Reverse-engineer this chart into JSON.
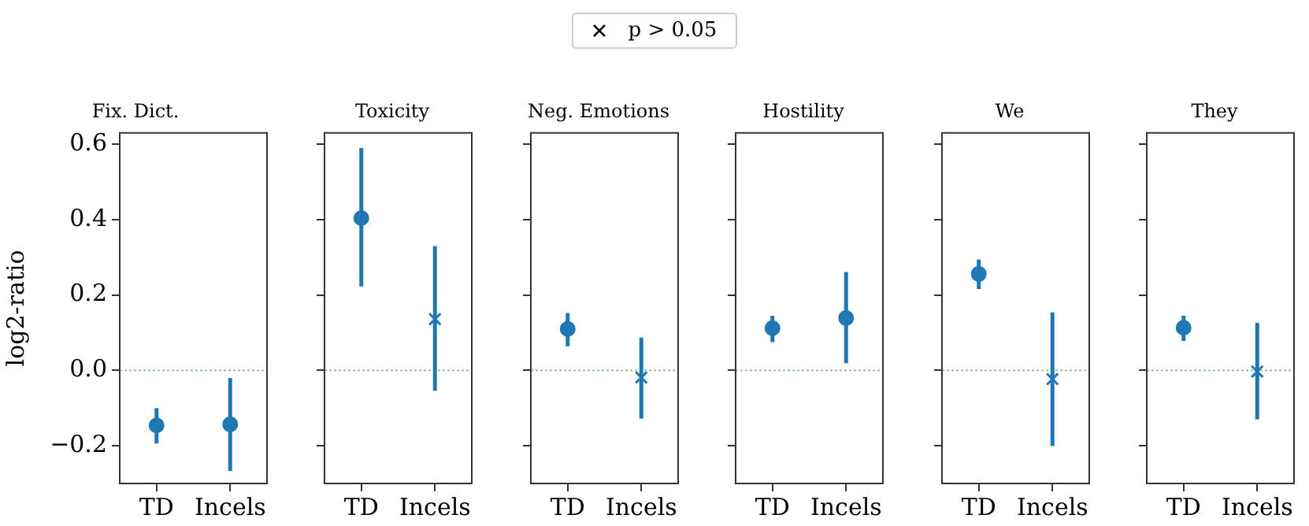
{
  "chart_data": [
    {
      "type": "scatter",
      "title": "Fix. Dict.",
      "ylabel": "log2-ratio",
      "categories": [
        "TD",
        "Incels"
      ],
      "ylim": [
        -0.3,
        0.63
      ],
      "yticks": [
        {
          "value": -0.2,
          "label": "−0.2"
        },
        {
          "value": 0,
          "label": "0.0"
        },
        0.2,
        0.4,
        0.6
      ],
      "grid": false,
      "ref_lines": [
        {
          "axis": "y",
          "value": 0,
          "color": "#8fbc8f",
          "line_style": "dotted"
        }
      ],
      "series": [
        {
          "color": "#1f77b4",
          "marker": "circle",
          "values": [
            -0.146,
            -0.143
          ],
          "errors": [
            [
              -0.194,
              -0.1
            ],
            [
              -0.267,
              -0.02
            ]
          ]
        },
        {
          "color": "#1f77b4",
          "marker": "cross",
          "values": [
            null,
            null
          ],
          "errors": [
            null,
            null
          ]
        }
      ]
    },
    {
      "type": "scatter",
      "title": "Toxicity",
      "categories": [
        "TD",
        "Incels"
      ],
      "ylim": [
        -0.3,
        0.63
      ],
      "yticks": [
        {
          "value": -0.2,
          "label": null
        },
        {
          "value": 0,
          "label": null
        },
        {
          "value": 0.2,
          "label": null
        },
        {
          "value": 0.4,
          "label": null
        },
        {
          "value": 0.6,
          "label": null
        }
      ],
      "tick_labels": "x",
      "grid": false,
      "legend": "top",
      "ref_lines": [
        {
          "axis": "y",
          "value": 0,
          "color": "#8fbc8f",
          "line_style": "dotted"
        }
      ],
      "series": [
        {
          "color": "#1f77b4",
          "marker": "circle",
          "values": [
            0.404,
            null
          ],
          "errors": [
            [
              0.223,
              0.59
            ],
            null
          ]
        },
        {
          "name": "p > 0.05",
          "color": "#1f77b4",
          "marker": "cross",
          "values": [
            null,
            0.136
          ],
          "errors": [
            null,
            [
              -0.054,
              0.33
            ]
          ]
        }
      ]
    },
    {
      "type": "scatter",
      "title": "Neg. Emotions",
      "categories": [
        "TD",
        "Incels"
      ],
      "ylim": [
        -0.3,
        0.63
      ],
      "yticks": [
        {
          "value": -0.2,
          "label": null
        },
        {
          "value": 0,
          "label": null
        },
        {
          "value": 0.2,
          "label": null
        },
        {
          "value": 0.4,
          "label": null
        },
        {
          "value": 0.6,
          "label": null
        }
      ],
      "tick_labels": "x",
      "grid": false,
      "ref_lines": [
        {
          "axis": "y",
          "value": 0,
          "color": "#8fbc8f",
          "line_style": "dotted"
        }
      ],
      "series": [
        {
          "color": "#1f77b4",
          "marker": "circle",
          "values": [
            0.11,
            null
          ],
          "errors": [
            [
              0.064,
              0.152
            ],
            null
          ]
        },
        {
          "color": "#1f77b4",
          "marker": "cross",
          "values": [
            null,
            -0.019
          ],
          "errors": [
            null,
            [
              -0.128,
              0.087
            ]
          ]
        }
      ]
    },
    {
      "type": "scatter",
      "title": "Hostility",
      "categories": [
        "TD",
        "Incels"
      ],
      "ylim": [
        -0.3,
        0.63
      ],
      "yticks": [
        {
          "value": -0.2,
          "label": null
        },
        {
          "value": 0,
          "label": null
        },
        {
          "value": 0.2,
          "label": null
        },
        {
          "value": 0.4,
          "label": null
        },
        {
          "value": 0.6,
          "label": null
        }
      ],
      "tick_labels": "x",
      "grid": false,
      "ref_lines": [
        {
          "axis": "y",
          "value": 0,
          "color": "#8fbc8f",
          "line_style": "dotted"
        }
      ],
      "series": [
        {
          "color": "#1f77b4",
          "marker": "circle",
          "values": [
            0.112,
            0.139
          ],
          "errors": [
            [
              0.075,
              0.145
            ],
            [
              0.019,
              0.261
            ]
          ]
        },
        {
          "color": "#1f77b4",
          "marker": "cross",
          "values": [
            null,
            null
          ],
          "errors": [
            null,
            null
          ]
        }
      ]
    },
    {
      "type": "scatter",
      "title": "We",
      "categories": [
        "TD",
        "Incels"
      ],
      "ylim": [
        -0.3,
        0.63
      ],
      "yticks": [
        {
          "value": -0.2,
          "label": null
        },
        {
          "value": 0,
          "label": null
        },
        {
          "value": 0.2,
          "label": null
        },
        {
          "value": 0.4,
          "label": null
        },
        {
          "value": 0.6,
          "label": null
        }
      ],
      "tick_labels": "x",
      "grid": false,
      "ref_lines": [
        {
          "axis": "y",
          "value": 0,
          "color": "#8fbc8f",
          "line_style": "dotted"
        }
      ],
      "series": [
        {
          "color": "#1f77b4",
          "marker": "circle",
          "values": [
            0.256,
            null
          ],
          "errors": [
            [
              0.216,
              0.294
            ],
            null
          ]
        },
        {
          "color": "#1f77b4",
          "marker": "cross",
          "values": [
            null,
            -0.023
          ],
          "errors": [
            null,
            [
              -0.2,
              0.154
            ]
          ]
        }
      ]
    },
    {
      "type": "scatter",
      "title": "They",
      "categories": [
        "TD",
        "Incels"
      ],
      "ylim": [
        -0.3,
        0.63
      ],
      "yticks": [
        {
          "value": -0.2,
          "label": null
        },
        {
          "value": 0,
          "label": null
        },
        {
          "value": 0.2,
          "label": null
        },
        {
          "value": 0.4,
          "label": null
        },
        {
          "value": 0.6,
          "label": null
        }
      ],
      "tick_labels": "x",
      "grid": false,
      "ref_lines": [
        {
          "axis": "y",
          "value": 0,
          "color": "#8fbc8f",
          "line_style": "dotted"
        }
      ],
      "series": [
        {
          "color": "#1f77b4",
          "marker": "circle",
          "values": [
            0.113,
            null
          ],
          "errors": [
            [
              0.078,
              0.145
            ],
            null
          ]
        },
        {
          "color": "#1f77b4",
          "marker": "cross",
          "values": [
            null,
            -0.003
          ],
          "errors": [
            null,
            [
              -0.13,
              0.126
            ]
          ]
        }
      ]
    }
  ]
}
